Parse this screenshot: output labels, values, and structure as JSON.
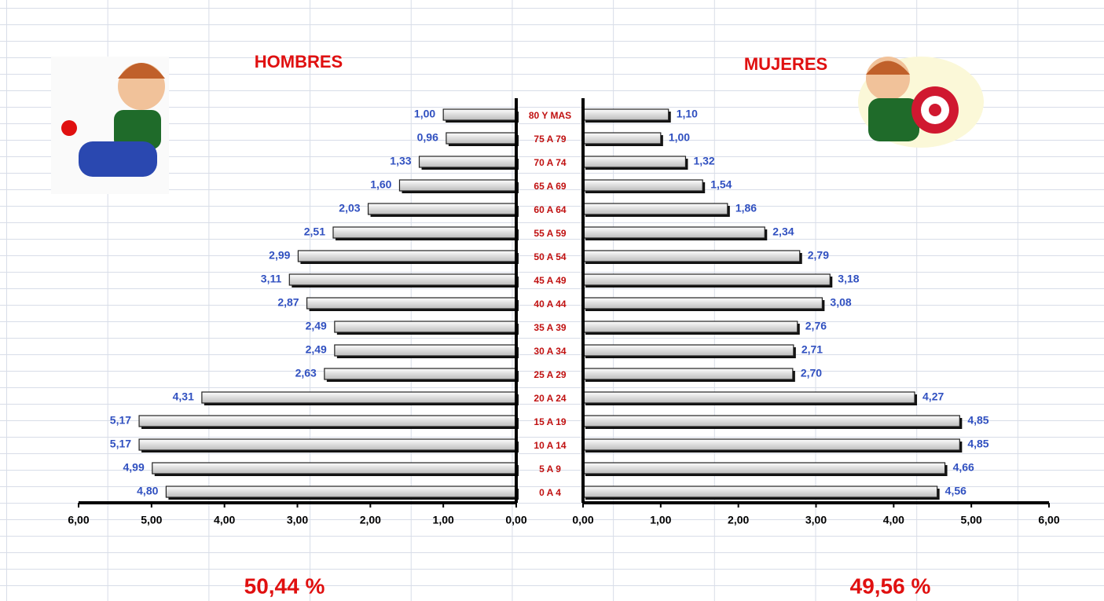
{
  "chart_data": {
    "type": "pyramid",
    "categories": [
      "80 Y MAS",
      "75 A 79",
      "70 A 74",
      "65 A 69",
      "60 A 64",
      "55 A 59",
      "50 A 54",
      "45 A 49",
      "40 A 44",
      "35 A 39",
      "30 A 34",
      "25 A 29",
      "20 A 24",
      "15 A 19",
      "10 A 14",
      "5 A 9",
      "0 A 4"
    ],
    "series": [
      {
        "name": "HOMBRES",
        "color": "#e6e6e6",
        "total": "50,44 %",
        "values": [
          1.0,
          0.96,
          1.33,
          1.6,
          2.03,
          2.51,
          2.99,
          3.11,
          2.87,
          2.49,
          2.49,
          2.63,
          4.31,
          5.17,
          5.17,
          4.99,
          4.8
        ],
        "value_labels": [
          "1,00",
          "0,96",
          "1,33",
          "1,60",
          "2,03",
          "2,51",
          "2,99",
          "3,11",
          "2,87",
          "2,49",
          "2,49",
          "2,63",
          "4,31",
          "5,17",
          "5,17",
          "4,99",
          "4,80"
        ]
      },
      {
        "name": "MUJERES",
        "color": "#e6e6e6",
        "total": "49,56 %",
        "values": [
          1.1,
          1.0,
          1.32,
          1.54,
          1.86,
          2.34,
          2.79,
          3.18,
          3.08,
          2.76,
          2.71,
          2.7,
          4.27,
          4.85,
          4.85,
          4.66,
          4.56
        ],
        "value_labels": [
          "1,10",
          "1,00",
          "1,32",
          "1,54",
          "1,86",
          "2,34",
          "2,79",
          "3,18",
          "3,08",
          "2,76",
          "2,71",
          "2,70",
          "4,27",
          "4,85",
          "4,85",
          "4,66",
          "4,56"
        ]
      }
    ],
    "xlim": [
      0,
      6
    ],
    "xticks": [
      {
        "value": 0,
        "label": "0,00"
      },
      {
        "value": 1,
        "label": "1,00"
      },
      {
        "value": 2,
        "label": "2,00"
      },
      {
        "value": 3,
        "label": "3,00"
      },
      {
        "value": 4,
        "label": "4,00"
      },
      {
        "value": 5,
        "label": "5,00"
      },
      {
        "value": 6,
        "label": "6,00"
      }
    ]
  }
}
